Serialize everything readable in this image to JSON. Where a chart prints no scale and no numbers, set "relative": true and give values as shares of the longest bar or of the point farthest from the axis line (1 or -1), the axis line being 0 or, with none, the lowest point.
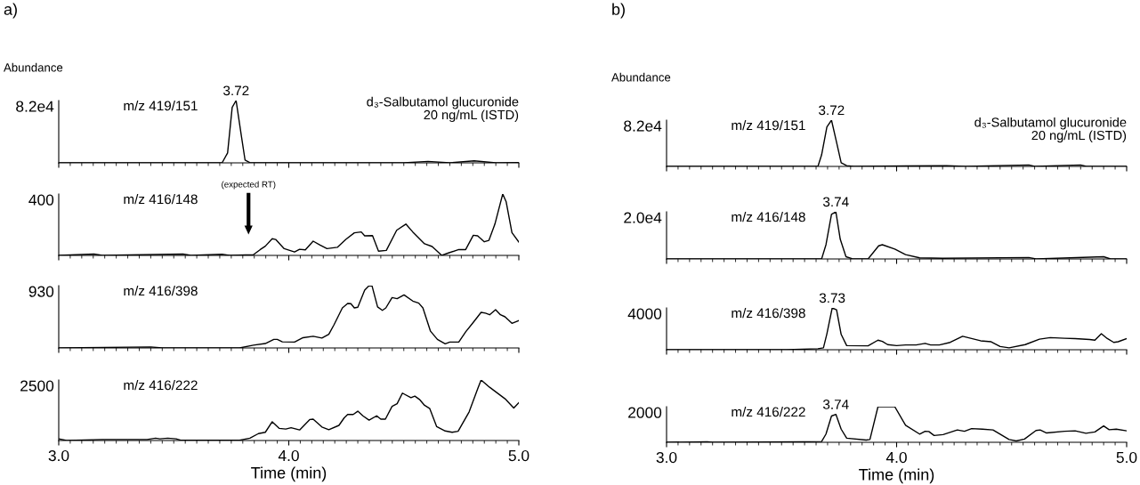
{
  "chart_data": [
    {
      "type": "line",
      "title": "a)",
      "ylabel": "Abundance",
      "color": "#000000",
      "relative": true,
      "xlim": [
        3.0,
        5.0
      ],
      "xticks": [
        {
          "value": 3.0,
          "label": null
        },
        {
          "value": 4.0,
          "label": null
        },
        {
          "value": 5.0,
          "label": null
        }
      ],
      "tick_labels": false,
      "annotations": [
        "8.2e4",
        "m/z 419/151",
        "d₃-Salbutamol glucuronide\n20 ng/mL (ISTD)",
        {
          "text": "3.72",
          "x": 3.771,
          "y": 1
        }
      ],
      "x": [
        3.0,
        3.71,
        3.734,
        3.754,
        3.771,
        3.794,
        3.81,
        3.83,
        4.5,
        4.605,
        4.7,
        4.806,
        4.9,
        5.0
      ],
      "values": [
        0,
        0,
        0.159,
        0.892,
        1,
        0.43,
        0.043,
        0.006,
        0,
        0.024,
        0,
        0.032,
        0,
        0.005
      ]
    },
    {
      "type": "line",
      "color": "#000000",
      "relative": true,
      "xlim": [
        3.0,
        5.0
      ],
      "xticks": [
        {
          "value": 3.0,
          "label": null
        },
        {
          "value": 4.0,
          "label": null
        },
        {
          "value": 5.0,
          "label": null
        }
      ],
      "tick_labels": false,
      "annotations": [
        "400",
        "m/z 416/148",
        "(expected RT)"
      ],
      "x": [
        3.0,
        3.153,
        3.19,
        3.54,
        3.575,
        3.71,
        3.745,
        3.846,
        3.876,
        3.898,
        3.928,
        3.943,
        3.98,
        4.025,
        4.047,
        4.072,
        4.106,
        4.136,
        4.166,
        4.211,
        4.248,
        4.285,
        4.315,
        4.33,
        4.364,
        4.39,
        4.424,
        4.469,
        4.509,
        4.539,
        4.59,
        4.623,
        4.665,
        4.694,
        4.739,
        4.769,
        4.802,
        4.821,
        4.85,
        4.87,
        4.896,
        4.93,
        4.945,
        4.97,
        5.0
      ],
      "values": [
        0,
        0.022,
        0,
        0.022,
        0,
        0.018,
        0,
        0.01,
        0.095,
        0.15,
        0.272,
        0.26,
        0.11,
        0.055,
        0.1,
        0.09,
        0.232,
        0.168,
        0.11,
        0.132,
        0.26,
        0.368,
        0.382,
        0.318,
        0.322,
        0.068,
        0.082,
        0.41,
        0.51,
        0.382,
        0.19,
        0.145,
        0,
        0.04,
        0.095,
        0.095,
        0.328,
        0.318,
        0.222,
        0.245,
        0.51,
        1,
        0.872,
        0.372,
        0.218
      ]
    },
    {
      "type": "line",
      "color": "#000000",
      "relative": true,
      "xlim": [
        3.0,
        5.0
      ],
      "xticks": [
        {
          "value": 3.0,
          "label": null
        },
        {
          "value": 4.0,
          "label": null
        },
        {
          "value": 5.0,
          "label": null
        }
      ],
      "tick_labels": false,
      "annotations": [
        "930",
        "m/z 416/398"
      ],
      "x": [
        3.0,
        3.4,
        3.45,
        3.786,
        3.846,
        3.898,
        3.935,
        3.95,
        3.972,
        4.025,
        4.062,
        4.106,
        4.144,
        4.174,
        4.196,
        4.233,
        4.256,
        4.27,
        4.285,
        4.3,
        4.33,
        4.349,
        4.362,
        4.386,
        4.407,
        4.422,
        4.449,
        4.471,
        4.501,
        4.539,
        4.565,
        4.583,
        4.616,
        4.646,
        4.68,
        4.7,
        4.739,
        4.769,
        4.799,
        4.836,
        4.855,
        4.873,
        4.899,
        4.92,
        4.94,
        4.97,
        5.0
      ],
      "values": [
        0,
        0.016,
        0,
        0,
        0.044,
        0.071,
        0.138,
        0.138,
        0.099,
        0.094,
        0.165,
        0.187,
        0.159,
        0.219,
        0.368,
        0.643,
        0.714,
        0.71,
        0.643,
        0.654,
        0.929,
        1,
        0.995,
        0.659,
        0.604,
        0.643,
        0.808,
        0.791,
        0.852,
        0.753,
        0.72,
        0.643,
        0.269,
        0.138,
        0.066,
        0.094,
        0.094,
        0.258,
        0.396,
        0.571,
        0.559,
        0.533,
        0.615,
        0.533,
        0.5,
        0.396,
        0.44
      ]
    },
    {
      "type": "line",
      "xlabel": "Time (min)",
      "color": "#000000",
      "relative": true,
      "xlim": [
        3.0,
        5.0
      ],
      "xticks": [
        {
          "value": 3.0,
          "label": "3.0"
        },
        {
          "value": 4.0,
          "label": "4.0"
        },
        {
          "value": 5.0,
          "label": "5.0"
        }
      ],
      "tick_labels": "x",
      "annotations": [
        "2500",
        "m/z 416/222"
      ],
      "x": [
        3.0,
        3.034,
        3.19,
        3.384,
        3.421,
        3.44,
        3.474,
        3.51,
        3.53,
        3.786,
        3.831,
        3.868,
        3.898,
        3.928,
        3.958,
        3.987,
        4.01,
        4.047,
        4.092,
        4.106,
        4.144,
        4.174,
        4.218,
        4.241,
        4.256,
        4.28,
        4.3,
        4.322,
        4.349,
        4.382,
        4.4,
        4.42,
        4.449,
        4.471,
        4.494,
        4.531,
        4.548,
        4.568,
        4.59,
        4.613,
        4.643,
        4.68,
        4.71,
        4.736,
        4.784,
        4.821,
        4.836,
        4.873,
        4.94,
        4.978,
        5.0
      ],
      "values": [
        0.027,
        0,
        0.016,
        0.016,
        0.038,
        0.027,
        0.038,
        0.027,
        0.005,
        0.005,
        0.038,
        0.114,
        0.136,
        0.31,
        0.201,
        0.19,
        0.212,
        0.174,
        0.348,
        0.353,
        0.223,
        0.179,
        0.25,
        0.375,
        0.43,
        0.43,
        0.484,
        0.408,
        0.337,
        0.408,
        0.353,
        0.353,
        0.565,
        0.609,
        0.783,
        0.707,
        0.734,
        0.679,
        0.582,
        0.527,
        0.228,
        0.158,
        0.136,
        0.152,
        0.473,
        0.853,
        1,
        0.88,
        0.69,
        0.538,
        0.625
      ]
    },
    {
      "type": "line",
      "title": "b)",
      "ylabel": "Abundance",
      "color": "#000000",
      "relative": true,
      "xlim": [
        3.0,
        5.0
      ],
      "xticks": [
        {
          "value": 3.0,
          "label": null
        },
        {
          "value": 4.0,
          "label": null
        },
        {
          "value": 5.0,
          "label": null
        }
      ],
      "tick_labels": false,
      "annotations": [
        "8.2e4",
        "m/z 419/151",
        "d₃-Salbutamol glucuronide\n20 ng/mL (ISTD)",
        {
          "text": "3.72",
          "x": 3.717,
          "y": 1
        }
      ],
      "x": [
        3.0,
        3.658,
        3.674,
        3.697,
        3.717,
        3.739,
        3.759,
        3.783,
        3.814,
        4.217,
        4.3,
        4.575,
        4.6,
        4.8,
        4.825,
        5.0
      ],
      "values": [
        0,
        0,
        0.249,
        0.855,
        1,
        0.521,
        0.078,
        0.016,
        0,
        0.016,
        0,
        0.031,
        0,
        0.031,
        0,
        0
      ]
    },
    {
      "type": "line",
      "color": "#000000",
      "relative": true,
      "xlim": [
        3.0,
        5.0
      ],
      "xticks": [
        {
          "value": 3.0,
          "label": null
        },
        {
          "value": 4.0,
          "label": null
        },
        {
          "value": 5.0,
          "label": null
        }
      ],
      "tick_labels": false,
      "annotations": [
        "2.0e4",
        "m/z 416/148",
        {
          "text": "3.74",
          "x": 3.736,
          "y": 1
        }
      ],
      "x": [
        3.0,
        3.674,
        3.693,
        3.717,
        3.736,
        3.755,
        3.78,
        3.806,
        3.876,
        3.922,
        3.938,
        3.992,
        4.039,
        4.1,
        4.2,
        4.575,
        4.606,
        4.9,
        4.93,
        5.0
      ],
      "values": [
        0,
        0,
        0.302,
        0.946,
        1,
        0.419,
        0.047,
        0.008,
        0,
        0.279,
        0.302,
        0.209,
        0.093,
        0.023,
        0.015,
        0.031,
        0,
        0.047,
        0,
        0
      ]
    },
    {
      "type": "line",
      "color": "#000000",
      "relative": true,
      "xlim": [
        3.0,
        5.0
      ],
      "xticks": [
        {
          "value": 3.0,
          "label": null
        },
        {
          "value": 4.0,
          "label": null
        },
        {
          "value": 5.0,
          "label": null
        }
      ],
      "tick_labels": false,
      "annotations": [
        "4000",
        "m/z 416/398",
        {
          "text": "3.73",
          "x": 3.72,
          "y": 1
        }
      ],
      "x": [
        3.0,
        3.52,
        3.658,
        3.682,
        3.697,
        3.72,
        3.739,
        3.759,
        3.783,
        3.876,
        3.919,
        3.938,
        3.961,
        4.0,
        4.039,
        4.085,
        4.124,
        4.148,
        4.186,
        4.233,
        4.287,
        4.365,
        4.411,
        4.45,
        4.489,
        4.559,
        4.621,
        4.668,
        4.73,
        4.776,
        4.839,
        4.862,
        4.89,
        4.916,
        4.944,
        4.963,
        5.0
      ],
      "values": [
        0,
        0,
        0.023,
        0.046,
        0.382,
        1,
        0.954,
        0.366,
        0.099,
        0.092,
        0.229,
        0.199,
        0.122,
        0.099,
        0.114,
        0.114,
        0.153,
        0.114,
        0.114,
        0.176,
        0.321,
        0.214,
        0.191,
        0.076,
        0.046,
        0.122,
        0.252,
        0.29,
        0.275,
        0.267,
        0.244,
        0.229,
        0.382,
        0.267,
        0.176,
        0.191,
        0.267
      ]
    },
    {
      "type": "line",
      "xlabel": "Time (min)",
      "color": "#000000",
      "relative": true,
      "xlim": [
        3.0,
        5.0
      ],
      "xticks": [
        {
          "value": 3.0,
          "label": "3.0"
        },
        {
          "value": 4.0,
          "label": "4.0"
        },
        {
          "value": 5.0,
          "label": "5.0"
        }
      ],
      "tick_labels": "x",
      "annotations": [
        "2000",
        "m/z 416/222",
        {
          "text": "3.74",
          "x": 3.736,
          "y": 0.785
        }
      ],
      "x": [
        3.0,
        3.177,
        3.2,
        3.596,
        3.674,
        3.693,
        3.717,
        3.736,
        3.759,
        3.783,
        3.868,
        3.884,
        3.919,
        3.992,
        4.039,
        4.1,
        4.124,
        4.14,
        4.163,
        4.202,
        4.264,
        4.295,
        4.326,
        4.373,
        4.419,
        4.489,
        4.52,
        4.556,
        4.606,
        4.624,
        4.652,
        4.73,
        4.776,
        4.823,
        4.862,
        4.9,
        4.924,
        4.955,
        5.0
      ],
      "values": [
        0,
        0.015,
        0,
        0.015,
        0.023,
        0.231,
        0.738,
        0.785,
        0.369,
        0.115,
        0.061,
        0.077,
        1,
        1,
        0.477,
        0.231,
        0.308,
        0.302,
        0.192,
        0.215,
        0.346,
        0.308,
        0.384,
        0.369,
        0.346,
        0.077,
        0.038,
        0.092,
        0.331,
        0.346,
        0.262,
        0.308,
        0.323,
        0.254,
        0.292,
        0.461,
        0.354,
        0.369,
        0.323
      ]
    }
  ]
}
